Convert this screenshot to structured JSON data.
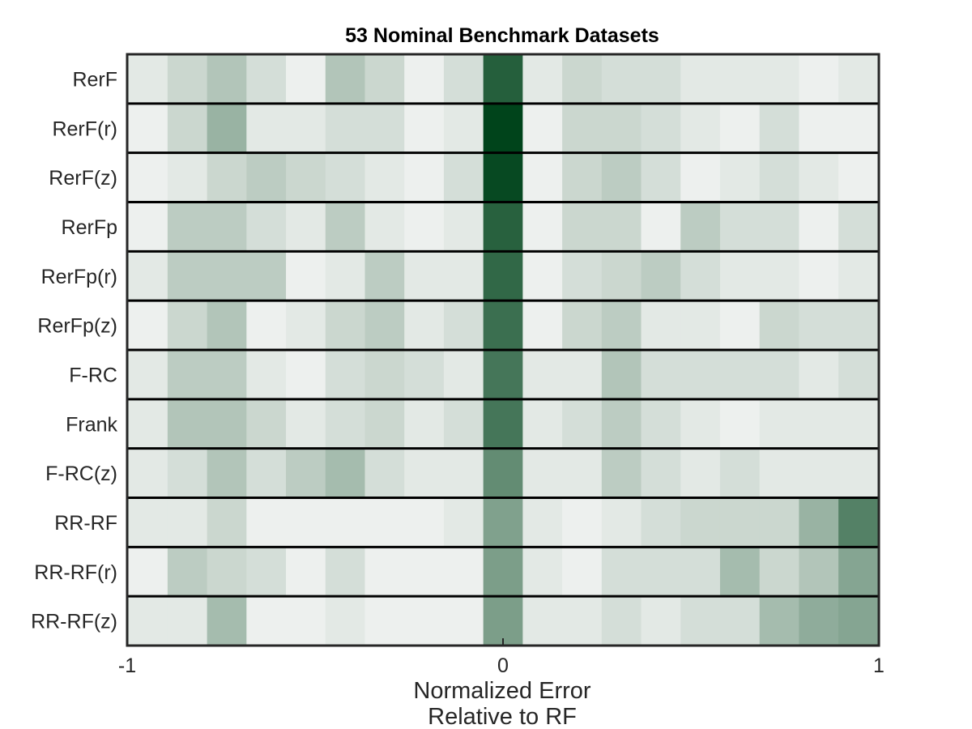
{
  "chart_data": {
    "type": "heatmap",
    "title": "53 Nominal Benchmark Datasets",
    "xlabel": [
      "Normalized Error",
      "Relative to RF"
    ],
    "ylabel": "",
    "xlim": [
      -1,
      1
    ],
    "x_ticks": [
      -1,
      0,
      1
    ],
    "x_tick_labels": [
      "-1",
      "0",
      "1"
    ],
    "bin_width": 0.105,
    "bin_centers": [
      -0.945,
      -0.84,
      -0.735,
      -0.63,
      -0.525,
      -0.42,
      -0.315,
      -0.21,
      -0.105,
      0,
      0.105,
      0.21,
      0.315,
      0.42,
      0.525,
      0.63,
      0.735,
      0.84,
      0.945
    ],
    "rows": [
      "RerF",
      "RerF(r)",
      "RerF(z)",
      "RerFp",
      "RerFp(r)",
      "RerFp(z)",
      "F-RC",
      "Frank",
      "F-RC(z)",
      "RR-RF",
      "RR-RF(r)",
      "RR-RF(z)"
    ],
    "values_unit": "relative frequency (0 = white, 1 = dark green)",
    "values": [
      [
        0.08,
        0.18,
        0.28,
        0.14,
        0.04,
        0.28,
        0.18,
        0.04,
        0.14,
        0.85,
        0.08,
        0.18,
        0.14,
        0.14,
        0.08,
        0.08,
        0.08,
        0.04,
        0.08
      ],
      [
        0.04,
        0.18,
        0.38,
        0.08,
        0.08,
        0.14,
        0.14,
        0.04,
        0.08,
        1.0,
        0.04,
        0.18,
        0.18,
        0.14,
        0.08,
        0.04,
        0.14,
        0.04,
        0.04
      ],
      [
        0.04,
        0.08,
        0.18,
        0.24,
        0.18,
        0.14,
        0.08,
        0.04,
        0.14,
        0.97,
        0.04,
        0.18,
        0.24,
        0.14,
        0.04,
        0.08,
        0.14,
        0.08,
        0.04
      ],
      [
        0.04,
        0.24,
        0.24,
        0.14,
        0.08,
        0.24,
        0.08,
        0.04,
        0.08,
        0.84,
        0.04,
        0.18,
        0.18,
        0.04,
        0.24,
        0.14,
        0.14,
        0.04,
        0.14
      ],
      [
        0.08,
        0.24,
        0.24,
        0.24,
        0.04,
        0.08,
        0.24,
        0.08,
        0.08,
        0.8,
        0.04,
        0.14,
        0.18,
        0.24,
        0.14,
        0.08,
        0.08,
        0.04,
        0.08
      ],
      [
        0.04,
        0.18,
        0.28,
        0.04,
        0.08,
        0.18,
        0.24,
        0.08,
        0.14,
        0.76,
        0.04,
        0.18,
        0.24,
        0.08,
        0.08,
        0.04,
        0.18,
        0.14,
        0.14
      ],
      [
        0.08,
        0.24,
        0.24,
        0.08,
        0.04,
        0.14,
        0.18,
        0.14,
        0.08,
        0.72,
        0.08,
        0.08,
        0.28,
        0.14,
        0.14,
        0.14,
        0.14,
        0.08,
        0.14
      ],
      [
        0.08,
        0.28,
        0.28,
        0.18,
        0.08,
        0.14,
        0.18,
        0.08,
        0.14,
        0.72,
        0.08,
        0.14,
        0.24,
        0.14,
        0.08,
        0.04,
        0.08,
        0.08,
        0.08
      ],
      [
        0.08,
        0.14,
        0.28,
        0.14,
        0.24,
        0.33,
        0.14,
        0.08,
        0.08,
        0.6,
        0.08,
        0.08,
        0.24,
        0.14,
        0.08,
        0.14,
        0.08,
        0.08,
        0.08
      ],
      [
        0.08,
        0.08,
        0.18,
        0.04,
        0.04,
        0.04,
        0.04,
        0.04,
        0.08,
        0.48,
        0.08,
        0.04,
        0.08,
        0.14,
        0.18,
        0.18,
        0.18,
        0.38,
        0.66
      ],
      [
        0.04,
        0.24,
        0.18,
        0.14,
        0.04,
        0.14,
        0.04,
        0.04,
        0.04,
        0.5,
        0.08,
        0.04,
        0.14,
        0.14,
        0.14,
        0.33,
        0.18,
        0.28,
        0.46
      ],
      [
        0.08,
        0.08,
        0.33,
        0.04,
        0.04,
        0.08,
        0.04,
        0.04,
        0.04,
        0.5,
        0.08,
        0.08,
        0.14,
        0.08,
        0.14,
        0.14,
        0.33,
        0.42,
        0.46
      ]
    ],
    "colormap": [
      "#f7f7f7",
      "#00441b"
    ],
    "grid": false,
    "legend": "none"
  }
}
